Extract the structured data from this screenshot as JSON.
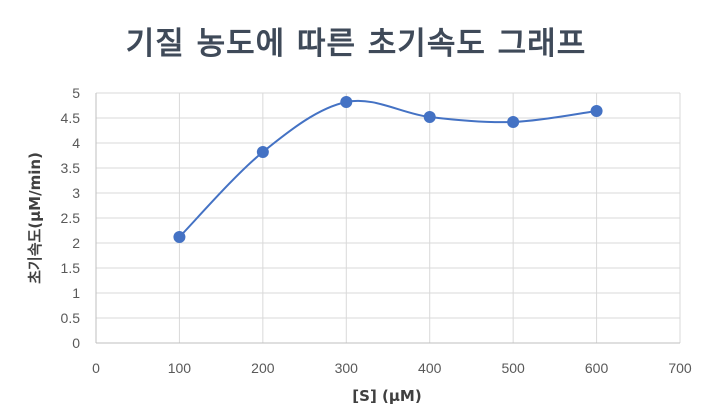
{
  "chart_data": {
    "type": "scatter",
    "title": "기질 농도에 따른 초기속도 그래프",
    "xlabel": "[S] (μM)",
    "ylabel": "초기속도(μM/min)",
    "xlim": [
      0,
      700
    ],
    "ylim": [
      0,
      5
    ],
    "x_ticks": [
      "0",
      "100",
      "200",
      "300",
      "400",
      "500",
      "600",
      "700"
    ],
    "y_ticks": [
      "0",
      "0.5",
      "1",
      "1.5",
      "2",
      "2.5",
      "3",
      "3.5",
      "4",
      "4.5",
      "5"
    ],
    "grid": true,
    "smooth_line": true,
    "series": [
      {
        "x": [
          100,
          200,
          300,
          400,
          500,
          600
        ],
        "y": [
          2.12,
          3.82,
          4.82,
          4.52,
          4.42,
          4.64
        ]
      }
    ],
    "colors": {
      "series": "#4472c4",
      "grid": "#d9d9d9",
      "axis": "#bfbfbf"
    }
  }
}
